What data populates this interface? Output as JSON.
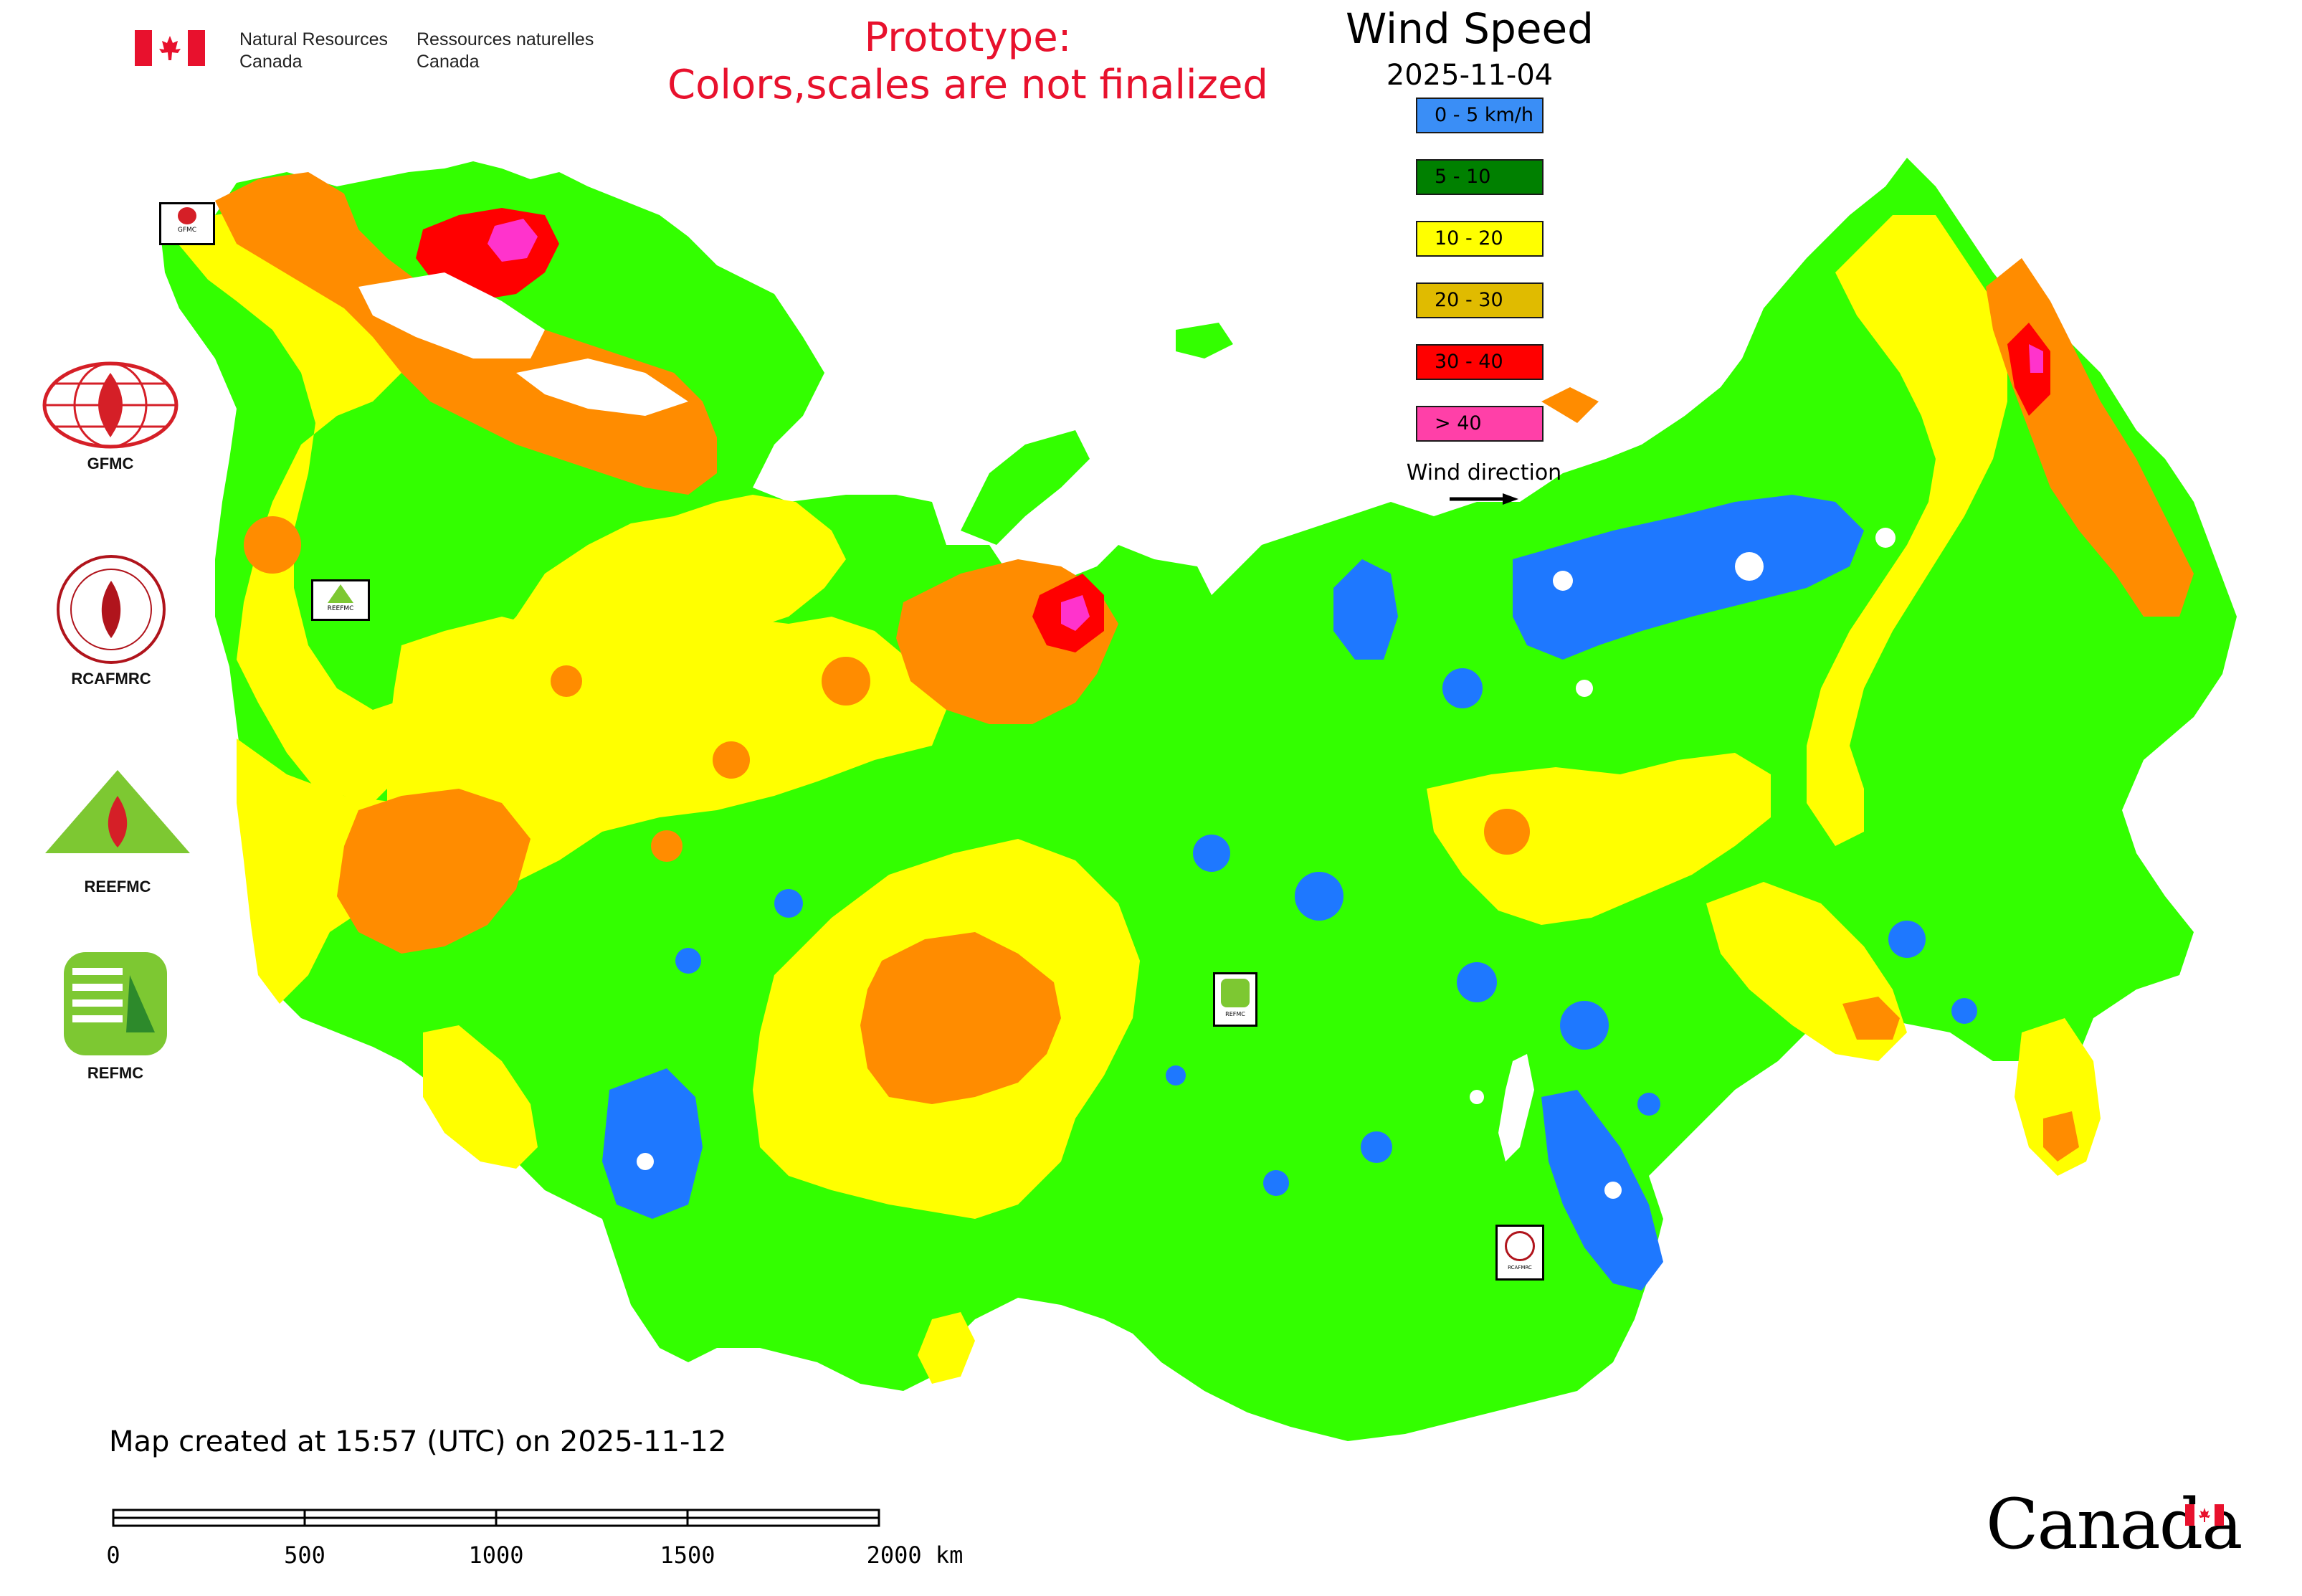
{
  "header": {
    "org_en_line1": "Natural Resources",
    "org_en_line2": "Canada",
    "org_fr_line1": "Ressources naturelles",
    "org_fr_line2": "Canada"
  },
  "notice": {
    "line1": "Prototype:",
    "line2": "Colors,scales are not finalized",
    "color": "#e8112d"
  },
  "map": {
    "title": "Wind Speed",
    "date": "2025-11-04",
    "legend": [
      {
        "label": "0 - 5 km/h",
        "color": "#3a8ef6"
      },
      {
        "label": "5 - 10",
        "color": "#008000"
      },
      {
        "label": "10 - 20",
        "color": "#ffff00"
      },
      {
        "label": "20 - 30",
        "color": "#e0bb00"
      },
      {
        "label": "30 - 40",
        "color": "#ff0000"
      },
      {
        "label": "> 40",
        "color": "#ff40a8"
      }
    ],
    "wind_direction_label": "Wind direction",
    "fill_colors": {
      "green": "#33ff00",
      "yellow": "#ffff00",
      "orange": "#ff8c00",
      "red": "#ff0000",
      "blue": "#1e78ff",
      "magenta": "#ff33cc"
    }
  },
  "logos": {
    "gfmc": "GFMC",
    "rcafmrc": "RCAFMRC",
    "reefmc": "REEFMC",
    "refmc": "REFMC",
    "map_marker_gfmc": "GFMC",
    "map_marker_reefmc": "REEFMC",
    "map_marker_refmc": "REFMC",
    "map_marker_rcafmrc": "RCAFMRC"
  },
  "footer": {
    "created": "Map created at 15:57 (UTC) on 2025-11-12",
    "scale_labels": [
      "0",
      "500",
      "1000",
      "1500",
      "2000 km"
    ],
    "wordmark": "Canada"
  }
}
